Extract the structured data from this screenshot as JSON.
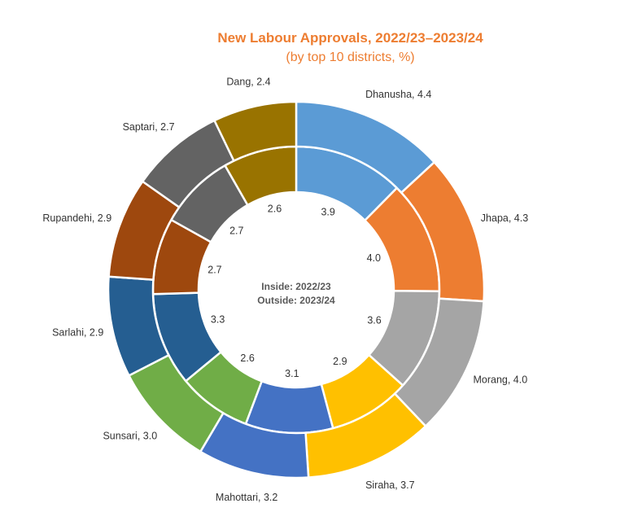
{
  "chart_data": {
    "type": "pie",
    "subtype": "double-donut",
    "title": "New Labour Approvals, 2022/23–2023/24",
    "subtitle": "(by top 10 districts, %)",
    "center_text": [
      "Inside: 2022/23",
      "Outside: 2023/24"
    ],
    "categories": [
      "Dhanusha",
      "Jhapa",
      "Morang",
      "Siraha",
      "Mahottari",
      "Sunsari",
      "Sarlahi",
      "Rupandehi",
      "Saptari",
      "Dang"
    ],
    "colors": [
      "#5B9BD5",
      "#ED7D31",
      "#A5A5A5",
      "#FFC000",
      "#4472C4",
      "#70AD47",
      "#255E91",
      "#9E480E",
      "#636363",
      "#997300"
    ],
    "series": [
      {
        "name": "2022/23",
        "ring": "inside",
        "values": [
          3.9,
          4.0,
          3.6,
          2.9,
          3.1,
          2.6,
          3.3,
          2.7,
          2.7,
          2.6
        ]
      },
      {
        "name": "2023/24",
        "ring": "outside",
        "values": [
          4.4,
          4.3,
          4.0,
          3.7,
          3.2,
          3.0,
          2.9,
          2.9,
          2.7,
          2.4
        ]
      }
    ]
  }
}
